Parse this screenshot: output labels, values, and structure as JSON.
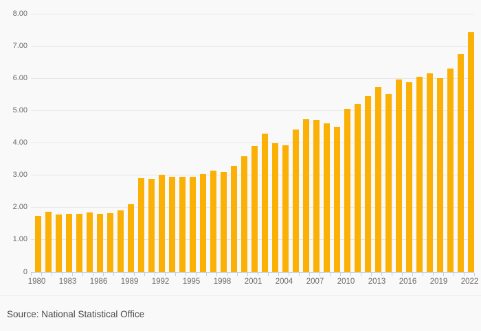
{
  "chart_data": {
    "type": "bar",
    "title": "",
    "categories": [
      1980,
      1981,
      1982,
      1983,
      1984,
      1985,
      1986,
      1987,
      1988,
      1989,
      1990,
      1991,
      1992,
      1993,
      1994,
      1995,
      1996,
      1997,
      1998,
      1999,
      2000,
      2001,
      2002,
      2003,
      2004,
      2005,
      2006,
      2007,
      2008,
      2009,
      2010,
      2011,
      2012,
      2013,
      2014,
      2015,
      2016,
      2017,
      2018,
      2019,
      2020,
      2021,
      2022
    ],
    "values": [
      1.75,
      1.86,
      1.78,
      1.81,
      1.81,
      1.85,
      1.8,
      1.83,
      1.9,
      2.11,
      2.9,
      2.89,
      3.01,
      2.94,
      2.95,
      2.95,
      3.04,
      3.13,
      3.1,
      3.28,
      3.58,
      3.9,
      4.29,
      4.0,
      3.93,
      4.41,
      4.73,
      4.71,
      4.61,
      4.5,
      5.05,
      5.2,
      5.45,
      5.73,
      5.51,
      5.97,
      5.87,
      6.05,
      6.15,
      6.01,
      6.31,
      6.74,
      7.43
    ],
    "xlabel": "",
    "ylabel": "",
    "ylim": [
      0,
      8
    ],
    "y_tick_labels": [
      "0",
      "1.00",
      "2.00",
      "3.00",
      "4.00",
      "5.00",
      "6.00",
      "7.00",
      "8.00"
    ],
    "x_tick_labels": [
      "1980",
      "1983",
      "1986",
      "1989",
      "1992",
      "1995",
      "1998",
      "2001",
      "2004",
      "2007",
      "2010",
      "2013",
      "2016",
      "2019",
      "2022"
    ],
    "x_label_interval": 3,
    "grid": "horizontal",
    "legend": "none"
  },
  "colors": {
    "background": "#f9f9f9",
    "bar": "#FAB005",
    "gridline": "#e6e6e6",
    "axis": "#c3cee0",
    "tick_text": "#6a6a6a",
    "source_text": "#4a4a4a"
  },
  "footer": {
    "source_text": "Source: National Statistical Office"
  }
}
